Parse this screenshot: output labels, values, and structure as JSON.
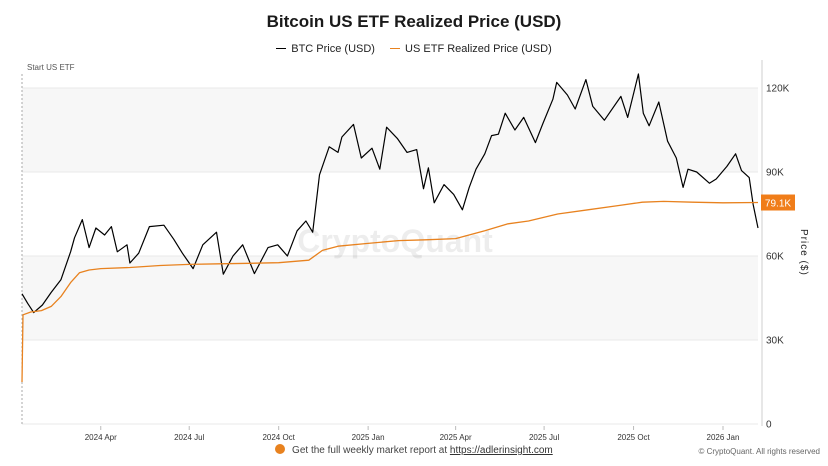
{
  "chart_data": {
    "type": "line",
    "title": "Bitcoin US ETF Realized Price (USD)",
    "ylabel": "Price ($)",
    "xlabel": "",
    "ylim": [
      0,
      130000
    ],
    "xlim": [
      "2024-01-11",
      "2026-02-06"
    ],
    "y_ticks": [
      0,
      30000,
      60000,
      90000,
      120000
    ],
    "y_tick_labels": [
      "0",
      "30K",
      "60K",
      "90K",
      "120K"
    ],
    "x_ticks": [
      "2024-04-01",
      "2024-07-01",
      "2024-10-01",
      "2025-01-01",
      "2025-04-01",
      "2025-07-01",
      "2025-10-01",
      "2026-01-01"
    ],
    "x_tick_labels": [
      "2024 Apr",
      "2024 Jul",
      "2024 Oct",
      "2025 Jan",
      "2025 Apr",
      "2025 Jul",
      "2025 Oct",
      "2026 Jan"
    ],
    "annotation": {
      "date": "2024-01-11",
      "label": "Start US ETF"
    },
    "last_value_label": "79.1K",
    "series": [
      {
        "name": "BTC Price (USD)",
        "color": "#000000",
        "points": [
          [
            "2024-01-11",
            46500
          ],
          [
            "2024-01-17",
            43000
          ],
          [
            "2024-01-23",
            39800
          ],
          [
            "2024-02-01",
            42500
          ],
          [
            "2024-02-10",
            47000
          ],
          [
            "2024-02-20",
            51500
          ],
          [
            "2024-03-01",
            61500
          ],
          [
            "2024-03-05",
            66500
          ],
          [
            "2024-03-13",
            73000
          ],
          [
            "2024-03-20",
            63000
          ],
          [
            "2024-03-27",
            70000
          ],
          [
            "2024-04-05",
            67500
          ],
          [
            "2024-04-12",
            70500
          ],
          [
            "2024-04-18",
            61500
          ],
          [
            "2024-04-28",
            64000
          ],
          [
            "2024-05-01",
            57500
          ],
          [
            "2024-05-10",
            61000
          ],
          [
            "2024-05-21",
            70500
          ],
          [
            "2024-06-05",
            71000
          ],
          [
            "2024-06-15",
            66000
          ],
          [
            "2024-06-24",
            61000
          ],
          [
            "2024-07-05",
            55500
          ],
          [
            "2024-07-15",
            64000
          ],
          [
            "2024-07-29",
            68500
          ],
          [
            "2024-08-05",
            53500
          ],
          [
            "2024-08-15",
            60000
          ],
          [
            "2024-08-25",
            64000
          ],
          [
            "2024-09-06",
            53700
          ],
          [
            "2024-09-20",
            63000
          ],
          [
            "2024-09-30",
            64000
          ],
          [
            "2024-10-10",
            60000
          ],
          [
            "2024-10-20",
            69000
          ],
          [
            "2024-10-29",
            72500
          ],
          [
            "2024-11-05",
            68500
          ],
          [
            "2024-11-12",
            89000
          ],
          [
            "2024-11-22",
            99000
          ],
          [
            "2024-12-01",
            97000
          ],
          [
            "2024-12-05",
            102500
          ],
          [
            "2024-12-17",
            107000
          ],
          [
            "2024-12-25",
            95000
          ],
          [
            "2025-01-05",
            98500
          ],
          [
            "2025-01-13",
            91000
          ],
          [
            "2025-01-20",
            106000
          ],
          [
            "2025-01-31",
            102000
          ],
          [
            "2025-02-10",
            97000
          ],
          [
            "2025-02-20",
            98000
          ],
          [
            "2025-02-27",
            84000
          ],
          [
            "2025-03-04",
            91500
          ],
          [
            "2025-03-10",
            79000
          ],
          [
            "2025-03-20",
            85500
          ],
          [
            "2025-03-30",
            82000
          ],
          [
            "2025-04-08",
            76500
          ],
          [
            "2025-04-15",
            84500
          ],
          [
            "2025-04-22",
            91000
          ],
          [
            "2025-05-01",
            96500
          ],
          [
            "2025-05-08",
            103000
          ],
          [
            "2025-05-15",
            103500
          ],
          [
            "2025-05-22",
            111000
          ],
          [
            "2025-06-01",
            105000
          ],
          [
            "2025-06-10",
            109500
          ],
          [
            "2025-06-22",
            100500
          ],
          [
            "2025-06-30",
            107500
          ],
          [
            "2025-07-10",
            116000
          ],
          [
            "2025-07-14",
            122000
          ],
          [
            "2025-07-25",
            117500
          ],
          [
            "2025-08-02",
            112500
          ],
          [
            "2025-08-13",
            123000
          ],
          [
            "2025-08-20",
            113500
          ],
          [
            "2025-09-01",
            108500
          ],
          [
            "2025-09-18",
            117000
          ],
          [
            "2025-09-25",
            109500
          ],
          [
            "2025-10-06",
            125000
          ],
          [
            "2025-10-11",
            111000
          ],
          [
            "2025-10-17",
            106500
          ],
          [
            "2025-10-27",
            115000
          ],
          [
            "2025-11-05",
            101000
          ],
          [
            "2025-11-14",
            95000
          ],
          [
            "2025-11-21",
            84500
          ],
          [
            "2025-11-26",
            91000
          ],
          [
            "2025-12-05",
            90000
          ],
          [
            "2025-12-18",
            86000
          ],
          [
            "2025-12-25",
            87500
          ],
          [
            "2026-01-05",
            92000
          ],
          [
            "2026-01-14",
            96500
          ],
          [
            "2026-01-20",
            90500
          ],
          [
            "2026-01-28",
            88000
          ],
          [
            "2026-02-01",
            78500
          ],
          [
            "2026-02-06",
            70000
          ]
        ]
      },
      {
        "name": "US ETF Realized Price (USD)",
        "color": "#e8821f",
        "points": [
          [
            "2024-01-11",
            15000
          ],
          [
            "2024-01-12",
            39000
          ],
          [
            "2024-01-20",
            40000
          ],
          [
            "2024-01-31",
            40500
          ],
          [
            "2024-02-10",
            42000
          ],
          [
            "2024-02-20",
            45500
          ],
          [
            "2024-03-01",
            50500
          ],
          [
            "2024-03-10",
            54000
          ],
          [
            "2024-03-20",
            55000
          ],
          [
            "2024-04-01",
            55500
          ],
          [
            "2024-05-01",
            55900
          ],
          [
            "2024-06-01",
            56600
          ],
          [
            "2024-07-01",
            57000
          ],
          [
            "2024-08-01",
            57200
          ],
          [
            "2024-09-01",
            57400
          ],
          [
            "2024-10-01",
            57600
          ],
          [
            "2024-11-01",
            58500
          ],
          [
            "2024-11-15",
            62000
          ],
          [
            "2024-12-01",
            63500
          ],
          [
            "2025-01-01",
            64500
          ],
          [
            "2025-02-01",
            65500
          ],
          [
            "2025-03-01",
            65800
          ],
          [
            "2025-04-01",
            66200
          ],
          [
            "2025-05-01",
            69000
          ],
          [
            "2025-05-25",
            71500
          ],
          [
            "2025-06-15",
            72500
          ],
          [
            "2025-07-15",
            75000
          ],
          [
            "2025-08-15",
            76500
          ],
          [
            "2025-09-15",
            78000
          ],
          [
            "2025-10-10",
            79200
          ],
          [
            "2025-11-01",
            79500
          ],
          [
            "2025-12-01",
            79200
          ],
          [
            "2026-01-01",
            79000
          ],
          [
            "2026-02-06",
            79100
          ]
        ]
      }
    ]
  },
  "legend": {
    "btc_label": "BTC Price (USD)",
    "etf_label": "US ETF Realized Price (USD)"
  },
  "watermark": "CryptoQuant",
  "footer": {
    "text": "Get the full weekly market report at",
    "link": "https://adlerinsight.com"
  },
  "copyright": "© CryptoQuant. All rights reserved",
  "colors": {
    "btc": "#000000",
    "etf": "#e8821f",
    "label_bg": "#f07d19",
    "grid": "#e9e9e9"
  }
}
